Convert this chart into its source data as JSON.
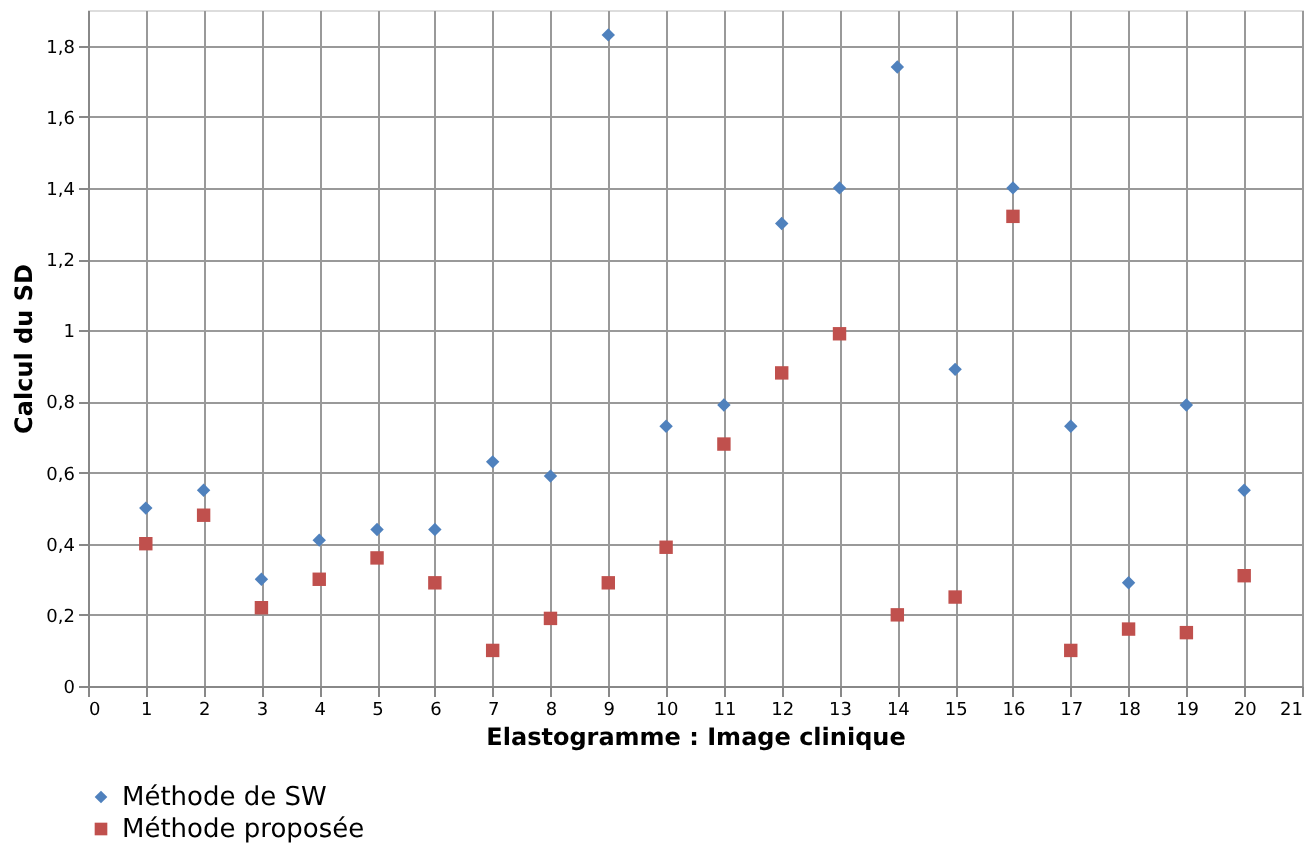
{
  "chart_data": {
    "type": "scatter",
    "xlabel": "Elastogramme : Image clinique",
    "ylabel": "Calcul du SD",
    "x": [
      1,
      2,
      3,
      4,
      5,
      6,
      7,
      8,
      9,
      10,
      11,
      12,
      13,
      14,
      15,
      16,
      17,
      18,
      19,
      20
    ],
    "series": [
      {
        "name": "Méthode de SW",
        "color": "#4f81bd",
        "marker": "diamond",
        "values": [
          0.5,
          0.55,
          0.3,
          0.41,
          0.44,
          0.44,
          0.63,
          0.59,
          1.83,
          0.73,
          0.79,
          1.3,
          1.4,
          1.74,
          0.89,
          1.4,
          0.73,
          0.29,
          0.79,
          0.55
        ]
      },
      {
        "name": "Méthode proposée",
        "color": "#c0504d",
        "marker": "square",
        "values": [
          0.4,
          0.48,
          0.22,
          0.3,
          0.36,
          0.29,
          0.1,
          0.19,
          0.29,
          0.39,
          0.68,
          0.88,
          0.99,
          0.2,
          0.25,
          1.32,
          0.1,
          0.16,
          0.15,
          0.31
        ]
      }
    ],
    "xlim": [
      0,
      21
    ],
    "xticks": [
      0,
      1,
      2,
      3,
      4,
      5,
      6,
      7,
      8,
      9,
      10,
      11,
      12,
      13,
      14,
      15,
      16,
      17,
      18,
      19,
      20,
      21
    ],
    "ylim": [
      0,
      1.9
    ],
    "yticks": [
      0,
      {
        "value": 0.2,
        "label": "0,2"
      },
      {
        "value": 0.4,
        "label": "0,4"
      },
      {
        "value": 0.6,
        "label": "0,6"
      },
      {
        "value": 0.8,
        "label": "0,8"
      },
      1,
      {
        "value": 1.2,
        "label": "1,2"
      },
      {
        "value": 1.4,
        "label": "1,4"
      },
      {
        "value": 1.6,
        "label": "1,6"
      },
      {
        "value": 1.8,
        "label": "1,8"
      }
    ],
    "grid": true,
    "legend": "bottom"
  }
}
